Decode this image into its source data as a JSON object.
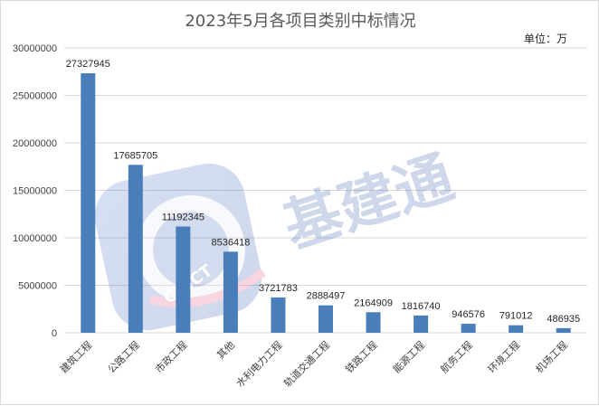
{
  "chart_data": {
    "type": "bar",
    "title": "2023年5月各项目类别中标情况",
    "unit": "单位：万",
    "categories": [
      "建筑工程",
      "公路工程",
      "市政工程",
      "其他",
      "水利电力工程",
      "轨道交通工程",
      "铁路工程",
      "能源工程",
      "航务工程",
      "环境工程",
      "机场工程"
    ],
    "values": [
      27327945,
      17685705,
      11192345,
      8536418,
      3721783,
      2888497,
      2164909,
      1816740,
      946576,
      791012,
      486935
    ],
    "ylim": [
      0,
      30000000
    ],
    "yticks": [
      0,
      5000000,
      10000000,
      15000000,
      20000000,
      25000000,
      30000000
    ],
    "grid": true,
    "legend": "none",
    "bar_color": "#4a7ebb"
  },
  "watermark": {
    "text": "基建通",
    "logo_text": "CINCT"
  }
}
